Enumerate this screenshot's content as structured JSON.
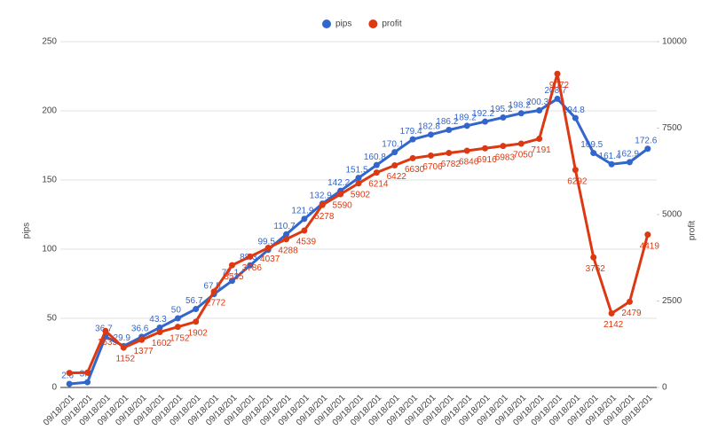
{
  "chart_data": {
    "type": "line",
    "categories": [
      "09/18/201",
      "09/18/201",
      "09/18/201",
      "09/18/201",
      "09/18/201",
      "09/18/201",
      "09/18/201",
      "09/18/201",
      "09/18/201",
      "09/18/201",
      "09/18/201",
      "09/18/201",
      "09/18/201",
      "09/18/201",
      "09/18/201",
      "09/18/201",
      "09/18/201",
      "09/18/201",
      "09/18/201",
      "09/18/201",
      "09/18/201",
      "09/18/201",
      "09/18/201",
      "09/18/201",
      "09/18/201",
      "09/18/201",
      "09/18/201",
      "09/18/201",
      "09/18/201",
      "09/18/201",
      "09/18/201",
      "09/18/201",
      "09/18/201"
    ],
    "series": [
      {
        "name": "pips",
        "color": "#3366cc",
        "axis": "y",
        "values": [
          2.6,
          3.8,
          36.7,
          29.9,
          36.6,
          43.3,
          50,
          56.7,
          67.5,
          77.1,
          88.3,
          99.5,
          110.7,
          121.9,
          132.9,
          142.2,
          151.5,
          160.8,
          170.1,
          179.4,
          182.8,
          186.2,
          189.2,
          192.2,
          195.2,
          198.2,
          200.3,
          208.7,
          194.8,
          169.5,
          161.4,
          162.9,
          172.6
        ]
      },
      {
        "name": "profit",
        "color": "#dc3912",
        "axis": "y2",
        "values": [
          420,
          430,
          1635,
          1152,
          1377,
          1602,
          1752,
          1902,
          2772,
          3535,
          3786,
          4037,
          4288,
          4539,
          5278,
          5590,
          5902,
          6214,
          6422,
          6630,
          6706,
          6782,
          6846,
          6916,
          6983,
          7050,
          7191,
          9072,
          6292,
          3762,
          2142,
          2479,
          4419
        ],
        "value_labels": [
          null,
          null,
          "1635",
          "1152",
          "1377",
          "1602",
          "1752",
          "1902",
          "2772",
          "3535",
          "3786",
          "4037",
          "4288",
          "4539",
          "5278",
          "5590",
          "5902",
          "6214",
          "6422",
          "6630",
          "6706",
          "6782",
          "6846",
          "6916",
          "6983",
          "7050",
          "7191",
          "9072",
          "6292",
          "3762",
          "2142",
          "2479",
          "4419"
        ]
      }
    ],
    "ylabel": "pips",
    "y2label": "profit",
    "ylim": [
      0,
      250
    ],
    "yticks": [
      0,
      50,
      100,
      150,
      200,
      250
    ],
    "y2lim": [
      0,
      10000
    ],
    "y2ticks": [
      0,
      2500,
      5000,
      7500,
      10000
    ],
    "grid": true,
    "legend": "top"
  }
}
